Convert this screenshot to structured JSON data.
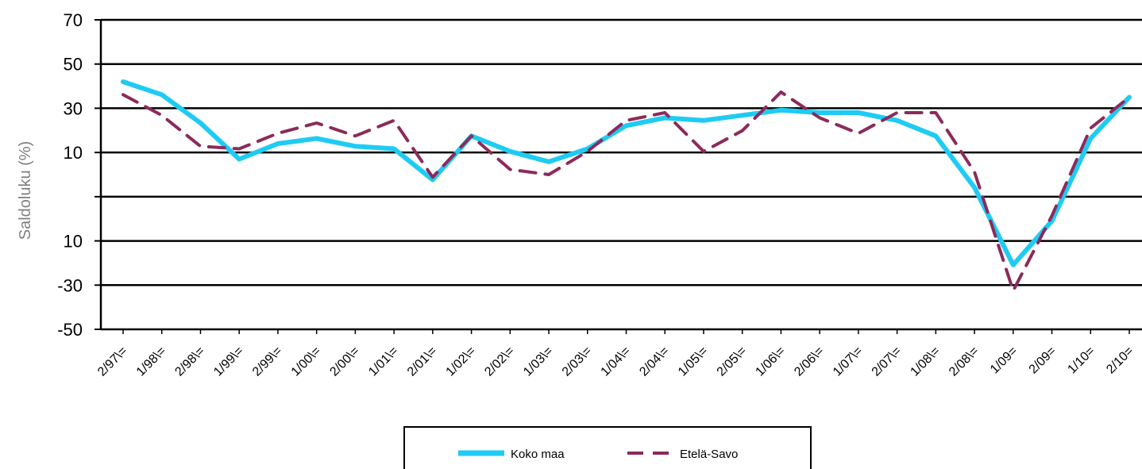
{
  "chart_data": {
    "type": "line",
    "ylabel": "Saldoluku (%)",
    "y_tick_labels": [
      "70",
      "50",
      "30",
      "10",
      "",
      "10",
      "-30",
      "-50"
    ],
    "categories": [
      "2/97\\=",
      "1/98\\=",
      "2/98\\=",
      "1/99\\=",
      "2/99\\=",
      "1/00\\=",
      "2/00\\=",
      "1/01\\=",
      "2/01\\=",
      "1/02\\=",
      "2/02\\=",
      "1/03\\=",
      "2/03\\=",
      "1/04\\=",
      "2/04\\=",
      "1/05\\=",
      "2/05\\=",
      "1/06\\=",
      "2/06\\=",
      "1/07\\=",
      "2/07\\=",
      "1/08\\=",
      "2/08\\=",
      "1/09=",
      "2/09=",
      "1/10=",
      "2/10="
    ],
    "ylim": [
      -50,
      70
    ],
    "grid": true,
    "legend_position": "bottom",
    "series": [
      {
        "name": "Koko maa",
        "color": "#1fcbf2",
        "style": "solid",
        "values": [
          46,
          41,
          30,
          16,
          22,
          24,
          21,
          20,
          8,
          25,
          19,
          15,
          20,
          29,
          32,
          31,
          33,
          35,
          34,
          34,
          31,
          25,
          5,
          -25,
          -8,
          24,
          40
        ]
      },
      {
        "name": "Etelä-Savo",
        "color": "#8b2b5a",
        "style": "dashed",
        "values": [
          41,
          33,
          21,
          20,
          26,
          30,
          25,
          31,
          9,
          25,
          12,
          10,
          19,
          31,
          34,
          19,
          27,
          42,
          32,
          26,
          34,
          34,
          11,
          -35,
          -6,
          28,
          40
        ]
      }
    ]
  }
}
